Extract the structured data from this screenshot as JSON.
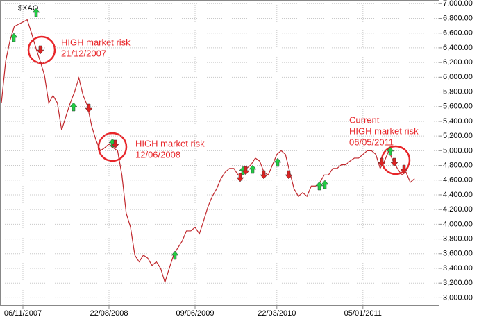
{
  "chart_data": {
    "type": "line",
    "title": "$XAO",
    "categories": [
      null,
      null,
      null,
      null,
      null,
      "06/11/2007",
      null,
      null,
      null,
      null,
      null,
      null,
      null,
      null,
      null,
      null,
      null,
      null,
      null,
      null,
      null,
      null,
      null,
      null,
      null,
      "22/08/2008",
      null,
      null,
      null,
      null,
      null,
      null,
      null,
      null,
      null,
      null,
      null,
      null,
      null,
      null,
      null,
      null,
      null,
      null,
      null,
      "09/06/2009",
      null,
      null,
      null,
      null,
      null,
      null,
      null,
      null,
      null,
      null,
      null,
      null,
      null,
      null,
      null,
      null,
      null,
      null,
      "22/03/2010",
      null,
      null,
      null,
      null,
      null,
      null,
      null,
      null,
      null,
      null,
      null,
      null,
      null,
      null,
      null,
      null,
      null,
      null,
      null,
      "05/01/2011",
      null,
      null,
      null,
      null,
      null,
      null,
      null,
      null,
      null,
      null,
      null,
      null
    ],
    "values": [
      5650,
      6220,
      6500,
      6690,
      6720,
      6750,
      6780,
      6600,
      6400,
      6220,
      6030,
      5650,
      5750,
      5650,
      5280,
      5470,
      5650,
      5800,
      5990,
      5750,
      5610,
      5330,
      5140,
      5000,
      5040,
      5090,
      5040,
      5000,
      4670,
      4150,
      3960,
      3580,
      3490,
      3580,
      3540,
      3440,
      3490,
      3400,
      3210,
      3400,
      3580,
      3680,
      3770,
      3910,
      3910,
      3960,
      3870,
      4050,
      4240,
      4380,
      4480,
      4620,
      4710,
      4760,
      4760,
      4670,
      4670,
      4760,
      4810,
      4900,
      4860,
      4710,
      4670,
      4810,
      4950,
      5000,
      4950,
      4710,
      4480,
      4380,
      4430,
      4380,
      4520,
      4520,
      4570,
      4670,
      4670,
      4760,
      4760,
      4810,
      4810,
      4860,
      4900,
      4900,
      4950,
      5000,
      5000,
      4950,
      4760,
      4860,
      5000,
      4860,
      4760,
      4670,
      4710,
      4570,
      4620
    ],
    "color": "#c0282d",
    "ylim": [
      2900,
      7050
    ],
    "yticks": [
      {
        "value": 3000,
        "label": "3,000.00"
      },
      {
        "value": 3200,
        "label": "3,200.00"
      },
      {
        "value": 3400,
        "label": "3,400.00"
      },
      {
        "value": 3600,
        "label": "3,600.00"
      },
      {
        "value": 3800,
        "label": "3,800.00"
      },
      {
        "value": 4000,
        "label": "4,000.00"
      },
      {
        "value": 4200,
        "label": "4,200.00"
      },
      {
        "value": 4400,
        "label": "4,400.00"
      },
      {
        "value": 4600,
        "label": "4,600.00"
      },
      {
        "value": 4800,
        "label": "4,800.00"
      },
      {
        "value": 5000,
        "label": "5,000.00"
      },
      {
        "value": 5200,
        "label": "5,200.00"
      },
      {
        "value": 5400,
        "label": "5,400.00"
      },
      {
        "value": 5600,
        "label": "5,600.00"
      },
      {
        "value": 5800,
        "label": "5,800.00"
      },
      {
        "value": 6000,
        "label": "6,000.00"
      },
      {
        "value": 6200,
        "label": "6,200.00"
      },
      {
        "value": 6400,
        "label": "6,400.00"
      },
      {
        "value": 6600,
        "label": "6,600.00"
      },
      {
        "value": 6800,
        "label": "6,800.00"
      },
      {
        "value": 7000,
        "label": "7,000.00"
      }
    ],
    "grid": true,
    "annotations": [
      {
        "lines": [
          "HIGH market risk",
          "21/12/2007"
        ]
      },
      {
        "lines": [
          "HIGH market risk",
          "12/06/2008"
        ]
      },
      {
        "lines": [
          "Current",
          "HIGH market risk",
          "06/05/2011"
        ]
      }
    ]
  }
}
